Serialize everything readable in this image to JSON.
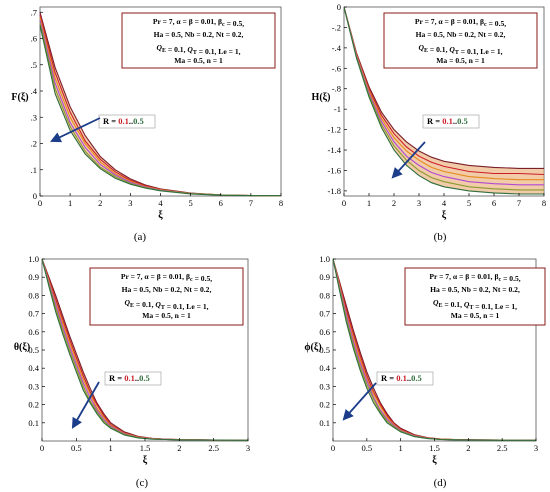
{
  "colors": {
    "series": [
      "#7a1f2b",
      "#cc1e28",
      "#e58a1c",
      "#b04ad0",
      "#8b9a30",
      "#2e6e3c"
    ],
    "fill": "#e8a060",
    "arrow": "#1c3d8a",
    "box_border": "#8b1a1a",
    "r_label_start": "#cc1e28",
    "r_label_end": "#2e6e3c"
  },
  "params_lines": [
    "Pr = 7, α = β = 0.01, β_c = 0.5,",
    "Ha = 0.5, Nb = 0.2, Nt = 0.2,",
    "Q_E = 0.1, Q_T = 0.1, Le = 1,",
    "Ma = 0.5, n = 1"
  ],
  "r_label": {
    "prefix": "R = ",
    "start": "0.1",
    "sep": "..",
    "end": "0.5"
  },
  "captions": [
    "(a)",
    "(b)",
    "(c)",
    "(d)"
  ],
  "chart_data": [
    {
      "type": "line",
      "ylabel": "F(ξ)",
      "xlabel": "ξ",
      "xlim": [
        0,
        8
      ],
      "ylim": [
        0,
        0.72
      ],
      "xticks": [
        0,
        1,
        2,
        3,
        4,
        5,
        6,
        7,
        8
      ],
      "yticks": [
        0,
        0.1,
        0.2,
        0.3,
        0.4,
        0.5,
        0.6,
        0.7
      ],
      "x": [
        0,
        0.5,
        1,
        1.5,
        2,
        2.5,
        3,
        3.5,
        4,
        5,
        6,
        7,
        8
      ],
      "series": [
        {
          "values": [
            0.7,
            0.49,
            0.34,
            0.23,
            0.15,
            0.1,
            0.065,
            0.042,
            0.027,
            0.011,
            0.004,
            0.002,
            0.001
          ]
        },
        {
          "values": [
            0.69,
            0.47,
            0.32,
            0.21,
            0.14,
            0.092,
            0.06,
            0.039,
            0.025,
            0.01,
            0.004,
            0.002,
            0.001
          ]
        },
        {
          "values": [
            0.68,
            0.45,
            0.3,
            0.2,
            0.13,
            0.085,
            0.056,
            0.036,
            0.024,
            0.01,
            0.004,
            0.002,
            0.001
          ]
        },
        {
          "values": [
            0.67,
            0.43,
            0.28,
            0.185,
            0.12,
            0.08,
            0.052,
            0.034,
            0.022,
            0.009,
            0.004,
            0.002,
            0.001
          ]
        },
        {
          "values": [
            0.66,
            0.41,
            0.265,
            0.17,
            0.11,
            0.074,
            0.048,
            0.032,
            0.021,
            0.009,
            0.004,
            0.002,
            0.001
          ]
        },
        {
          "values": [
            0.65,
            0.39,
            0.25,
            0.16,
            0.104,
            0.068,
            0.045,
            0.03,
            0.02,
            0.008,
            0.003,
            0.001,
            0.001
          ]
        }
      ]
    },
    {
      "type": "line",
      "ylabel": "H(ξ)",
      "xlabel": "ξ",
      "xlim": [
        0,
        8
      ],
      "ylim": [
        -1.85,
        0
      ],
      "xticks": [
        0,
        1,
        2,
        3,
        4,
        5,
        6,
        7,
        8
      ],
      "yticks": [
        0,
        -0.2,
        -0.4,
        -0.6,
        -0.8,
        -1,
        -1.2,
        -1.4,
        -1.6,
        -1.8
      ],
      "x": [
        0,
        0.5,
        1,
        1.5,
        2,
        2.5,
        3,
        3.5,
        4,
        5,
        6,
        7,
        8
      ],
      "series": [
        {
          "values": [
            0,
            -0.45,
            -0.78,
            -1.03,
            -1.2,
            -1.32,
            -1.41,
            -1.47,
            -1.51,
            -1.55,
            -1.57,
            -1.58,
            -1.58
          ]
        },
        {
          "values": [
            0,
            -0.46,
            -0.8,
            -1.06,
            -1.24,
            -1.37,
            -1.46,
            -1.52,
            -1.56,
            -1.61,
            -1.63,
            -1.63,
            -1.64
          ]
        },
        {
          "values": [
            0,
            -0.47,
            -0.82,
            -1.09,
            -1.28,
            -1.41,
            -1.5,
            -1.57,
            -1.61,
            -1.66,
            -1.68,
            -1.69,
            -1.69
          ]
        },
        {
          "values": [
            0,
            -0.48,
            -0.84,
            -1.12,
            -1.32,
            -1.46,
            -1.55,
            -1.62,
            -1.66,
            -1.71,
            -1.73,
            -1.74,
            -1.74
          ]
        },
        {
          "values": [
            0,
            -0.49,
            -0.86,
            -1.15,
            -1.36,
            -1.5,
            -1.6,
            -1.67,
            -1.71,
            -1.76,
            -1.78,
            -1.79,
            -1.79
          ]
        },
        {
          "values": [
            0,
            -0.5,
            -0.88,
            -1.18,
            -1.4,
            -1.55,
            -1.65,
            -1.72,
            -1.76,
            -1.8,
            -1.82,
            -1.83,
            -1.83
          ]
        }
      ]
    },
    {
      "type": "line",
      "ylabel": "θ(ξ)",
      "xlabel": "ξ",
      "xlim": [
        0,
        3
      ],
      "ylim": [
        0,
        1
      ],
      "xticks": [
        0,
        0.5,
        1,
        1.5,
        2,
        2.5,
        3
      ],
      "yticks": [
        0.1,
        0.2,
        0.3,
        0.4,
        0.5,
        0.6,
        0.7,
        0.8,
        0.9,
        1.0
      ],
      "x": [
        0,
        0.1,
        0.2,
        0.3,
        0.4,
        0.5,
        0.6,
        0.7,
        0.8,
        0.9,
        1.0,
        1.2,
        1.4,
        1.6,
        1.8,
        2.0,
        2.5,
        3.0
      ],
      "series": [
        {
          "values": [
            1,
            0.9,
            0.8,
            0.69,
            0.58,
            0.48,
            0.38,
            0.29,
            0.21,
            0.15,
            0.1,
            0.05,
            0.025,
            0.015,
            0.01,
            0.008,
            0.005,
            0.004
          ]
        },
        {
          "values": [
            1,
            0.89,
            0.78,
            0.67,
            0.56,
            0.46,
            0.36,
            0.27,
            0.2,
            0.14,
            0.09,
            0.045,
            0.023,
            0.014,
            0.01,
            0.008,
            0.005,
            0.004
          ]
        },
        {
          "values": [
            1,
            0.88,
            0.76,
            0.65,
            0.54,
            0.44,
            0.34,
            0.26,
            0.18,
            0.13,
            0.085,
            0.042,
            0.021,
            0.013,
            0.009,
            0.007,
            0.005,
            0.004
          ]
        },
        {
          "values": [
            1,
            0.87,
            0.75,
            0.63,
            0.52,
            0.42,
            0.32,
            0.24,
            0.17,
            0.12,
            0.08,
            0.039,
            0.02,
            0.012,
            0.009,
            0.007,
            0.005,
            0.004
          ]
        },
        {
          "values": [
            1,
            0.86,
            0.73,
            0.61,
            0.5,
            0.4,
            0.3,
            0.22,
            0.16,
            0.11,
            0.075,
            0.036,
            0.019,
            0.011,
            0.008,
            0.007,
            0.005,
            0.004
          ]
        },
        {
          "values": [
            1,
            0.85,
            0.71,
            0.59,
            0.48,
            0.38,
            0.28,
            0.21,
            0.15,
            0.1,
            0.07,
            0.033,
            0.017,
            0.01,
            0.008,
            0.006,
            0.005,
            0.004
          ]
        }
      ]
    },
    {
      "type": "line",
      "ylabel": "ϕ(ξ)",
      "xlabel": "ξ",
      "xlim": [
        0,
        3
      ],
      "ylim": [
        0,
        1
      ],
      "xticks": [
        0,
        0.5,
        1,
        1.5,
        2,
        2.5,
        3
      ],
      "yticks": [
        0.1,
        0.2,
        0.3,
        0.4,
        0.5,
        0.6,
        0.7,
        0.8,
        0.9,
        1.0
      ],
      "x": [
        0,
        0.1,
        0.2,
        0.3,
        0.4,
        0.5,
        0.6,
        0.7,
        0.8,
        0.9,
        1.0,
        1.2,
        1.4,
        1.6,
        1.8,
        2.0,
        2.5,
        3.0
      ],
      "series": [
        {
          "values": [
            1,
            0.87,
            0.74,
            0.61,
            0.49,
            0.38,
            0.29,
            0.21,
            0.15,
            0.1,
            0.07,
            0.035,
            0.018,
            0.011,
            0.008,
            0.007,
            0.005,
            0.004
          ]
        },
        {
          "values": [
            1,
            0.86,
            0.72,
            0.59,
            0.47,
            0.36,
            0.27,
            0.2,
            0.14,
            0.095,
            0.065,
            0.032,
            0.017,
            0.01,
            0.008,
            0.006,
            0.005,
            0.004
          ]
        },
        {
          "values": [
            1,
            0.85,
            0.7,
            0.57,
            0.45,
            0.34,
            0.26,
            0.19,
            0.13,
            0.09,
            0.06,
            0.03,
            0.016,
            0.01,
            0.007,
            0.006,
            0.005,
            0.004
          ]
        },
        {
          "values": [
            1,
            0.84,
            0.69,
            0.55,
            0.43,
            0.33,
            0.24,
            0.17,
            0.12,
            0.085,
            0.057,
            0.028,
            0.015,
            0.009,
            0.007,
            0.006,
            0.005,
            0.004
          ]
        },
        {
          "values": [
            1,
            0.83,
            0.67,
            0.53,
            0.41,
            0.31,
            0.23,
            0.16,
            0.11,
            0.08,
            0.054,
            0.026,
            0.014,
            0.009,
            0.007,
            0.006,
            0.005,
            0.004
          ]
        },
        {
          "values": [
            1,
            0.82,
            0.65,
            0.51,
            0.39,
            0.29,
            0.21,
            0.15,
            0.1,
            0.075,
            0.05,
            0.024,
            0.013,
            0.008,
            0.006,
            0.005,
            0.004,
            0.004
          ]
        }
      ]
    }
  ]
}
